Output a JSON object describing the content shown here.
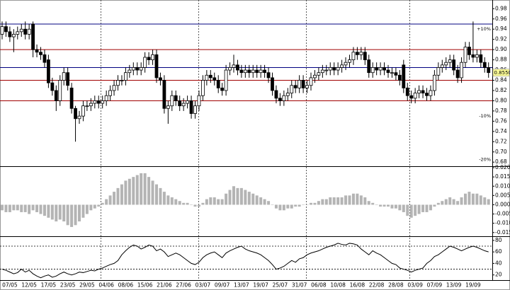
{
  "chart_data": [
    {
      "type": "candlestick",
      "open": [
        0.93,
        0.945,
        0.935,
        0.925,
        0.93,
        0.935,
        0.94,
        0.93,
        0.95,
        0.9,
        0.895,
        0.89,
        0.88,
        0.835,
        0.82,
        0.8,
        0.84,
        0.855,
        0.825,
        0.785,
        0.765,
        0.77,
        0.79,
        0.79,
        0.795,
        0.8,
        0.795,
        0.8,
        0.81,
        0.82,
        0.83,
        0.84,
        0.84,
        0.855,
        0.86,
        0.865,
        0.86,
        0.865,
        0.885,
        0.88,
        0.89,
        0.845,
        0.84,
        0.785,
        0.79,
        0.81,
        0.8,
        0.79,
        0.795,
        0.8,
        0.775,
        0.79,
        0.81,
        0.84,
        0.85,
        0.845,
        0.84,
        0.825,
        0.82,
        0.86,
        0.865,
        0.87,
        0.86,
        0.855,
        0.86,
        0.855,
        0.86,
        0.855,
        0.86,
        0.855,
        0.845,
        0.82,
        0.805,
        0.8,
        0.81,
        0.815,
        0.83,
        0.825,
        0.84,
        0.825,
        0.83,
        0.845,
        0.85,
        0.855,
        0.86,
        0.86,
        0.865,
        0.86,
        0.865,
        0.87,
        0.875,
        0.88,
        0.895,
        0.89,
        0.895,
        0.88,
        0.855,
        0.865,
        0.86,
        0.865,
        0.86,
        0.855,
        0.855,
        0.85,
        0.87,
        0.825,
        0.81,
        0.805,
        0.815,
        0.82,
        0.815,
        0.81,
        0.82,
        0.85,
        0.865,
        0.87,
        0.875,
        0.88,
        0.86,
        0.845,
        0.875,
        0.905,
        0.89,
        0.885,
        0.89,
        0.875,
        0.865
      ],
      "high": [
        0.955,
        0.955,
        0.945,
        0.94,
        0.945,
        0.95,
        0.955,
        0.95,
        0.955,
        0.91,
        0.905,
        0.9,
        0.89,
        0.845,
        0.83,
        0.85,
        0.865,
        0.865,
        0.835,
        0.79,
        0.78,
        0.8,
        0.8,
        0.805,
        0.81,
        0.81,
        0.81,
        0.82,
        0.83,
        0.84,
        0.85,
        0.85,
        0.865,
        0.87,
        0.875,
        0.875,
        0.875,
        0.895,
        0.895,
        0.9,
        0.9,
        0.855,
        0.85,
        0.8,
        0.82,
        0.82,
        0.81,
        0.805,
        0.81,
        0.81,
        0.8,
        0.82,
        0.85,
        0.86,
        0.86,
        0.855,
        0.85,
        0.835,
        0.87,
        0.875,
        0.89,
        0.88,
        0.87,
        0.87,
        0.87,
        0.87,
        0.87,
        0.87,
        0.87,
        0.865,
        0.855,
        0.83,
        0.815,
        0.82,
        0.825,
        0.84,
        0.84,
        0.85,
        0.85,
        0.84,
        0.855,
        0.86,
        0.865,
        0.87,
        0.87,
        0.875,
        0.875,
        0.875,
        0.88,
        0.885,
        0.89,
        0.905,
        0.905,
        0.905,
        0.905,
        0.89,
        0.875,
        0.875,
        0.875,
        0.875,
        0.87,
        0.865,
        0.865,
        0.86,
        0.88,
        0.835,
        0.82,
        0.825,
        0.83,
        0.83,
        0.825,
        0.83,
        0.86,
        0.875,
        0.88,
        0.885,
        0.89,
        0.89,
        0.87,
        0.885,
        0.915,
        0.915,
        0.955,
        0.9,
        0.9,
        0.885,
        0.875
      ],
      "low": [
        0.92,
        0.925,
        0.915,
        0.895,
        0.92,
        0.925,
        0.92,
        0.92,
        0.885,
        0.885,
        0.88,
        0.865,
        0.825,
        0.81,
        0.78,
        0.79,
        0.83,
        0.82,
        0.775,
        0.72,
        0.755,
        0.76,
        0.78,
        0.78,
        0.785,
        0.785,
        0.785,
        0.79,
        0.8,
        0.81,
        0.82,
        0.83,
        0.83,
        0.845,
        0.85,
        0.85,
        0.85,
        0.855,
        0.87,
        0.87,
        0.835,
        0.83,
        0.775,
        0.755,
        0.78,
        0.79,
        0.78,
        0.78,
        0.785,
        0.765,
        0.765,
        0.78,
        0.8,
        0.83,
        0.835,
        0.83,
        0.815,
        0.81,
        0.81,
        0.85,
        0.855,
        0.85,
        0.845,
        0.845,
        0.845,
        0.845,
        0.845,
        0.845,
        0.845,
        0.835,
        0.81,
        0.795,
        0.79,
        0.79,
        0.8,
        0.805,
        0.815,
        0.815,
        0.815,
        0.815,
        0.82,
        0.835,
        0.84,
        0.845,
        0.85,
        0.85,
        0.85,
        0.85,
        0.855,
        0.86,
        0.865,
        0.87,
        0.88,
        0.88,
        0.87,
        0.845,
        0.845,
        0.85,
        0.85,
        0.85,
        0.845,
        0.845,
        0.84,
        0.83,
        0.815,
        0.8,
        0.795,
        0.795,
        0.805,
        0.805,
        0.8,
        0.8,
        0.81,
        0.84,
        0.855,
        0.86,
        0.865,
        0.85,
        0.835,
        0.835,
        0.865,
        0.88,
        0.875,
        0.875,
        0.865,
        0.855,
        0.845
      ],
      "close": [
        0.945,
        0.935,
        0.925,
        0.93,
        0.935,
        0.94,
        0.93,
        0.94,
        0.9,
        0.895,
        0.89,
        0.875,
        0.835,
        0.82,
        0.8,
        0.84,
        0.855,
        0.83,
        0.785,
        0.765,
        0.77,
        0.79,
        0.79,
        0.795,
        0.8,
        0.795,
        0.8,
        0.81,
        0.82,
        0.83,
        0.84,
        0.84,
        0.855,
        0.86,
        0.865,
        0.86,
        0.865,
        0.885,
        0.88,
        0.89,
        0.845,
        0.84,
        0.785,
        0.79,
        0.81,
        0.8,
        0.79,
        0.795,
        0.8,
        0.775,
        0.79,
        0.81,
        0.84,
        0.85,
        0.845,
        0.84,
        0.825,
        0.82,
        0.86,
        0.865,
        0.87,
        0.86,
        0.855,
        0.86,
        0.855,
        0.86,
        0.855,
        0.86,
        0.855,
        0.845,
        0.82,
        0.805,
        0.8,
        0.81,
        0.815,
        0.83,
        0.825,
        0.84,
        0.825,
        0.83,
        0.845,
        0.85,
        0.855,
        0.86,
        0.86,
        0.865,
        0.86,
        0.865,
        0.87,
        0.875,
        0.88,
        0.895,
        0.89,
        0.895,
        0.88,
        0.855,
        0.865,
        0.86,
        0.865,
        0.86,
        0.855,
        0.855,
        0.85,
        0.84,
        0.825,
        0.81,
        0.805,
        0.815,
        0.82,
        0.815,
        0.81,
        0.82,
        0.85,
        0.865,
        0.87,
        0.875,
        0.88,
        0.86,
        0.845,
        0.875,
        0.905,
        0.89,
        0.885,
        0.89,
        0.875,
        0.865,
        0.855
      ],
      "up_color": "#ffffff",
      "down_color": "#000000",
      "ylim": [
        0.672,
        0.997
      ],
      "yticks": [
        {
          "value": 0.68,
          "label": "0.68"
        },
        {
          "value": 0.7,
          "label": "0.70"
        },
        {
          "value": 0.72,
          "label": "0.72"
        },
        {
          "value": 0.74,
          "label": "0.74"
        },
        {
          "value": 0.76,
          "label": "0.76"
        },
        {
          "value": 0.78,
          "label": "0.78"
        },
        {
          "value": 0.8,
          "label": "0.80"
        },
        {
          "value": 0.82,
          "label": "0.82"
        },
        {
          "value": 0.84,
          "label": "0.84"
        },
        {
          "value": 0.86,
          "label": "0.86"
        },
        {
          "value": 0.88,
          "label": "0.88"
        },
        {
          "value": 0.9,
          "label": "0.90"
        },
        {
          "value": 0.92,
          "label": "0.92"
        },
        {
          "value": 0.94,
          "label": "0.94"
        },
        {
          "value": 0.96,
          "label": "0.96"
        },
        {
          "value": 0.98,
          "label": "0.98"
        }
      ],
      "hlines": [
        {
          "value": 0.95,
          "color": "#000080"
        },
        {
          "value": 0.9,
          "color": "#a00000"
        },
        {
          "value": 0.865,
          "color": "#000080"
        },
        {
          "value": 0.84,
          "color": "#a00000"
        },
        {
          "value": 0.8,
          "color": "#a00000"
        }
      ],
      "annotations": [
        {
          "text": "+10%",
          "y": 0.94,
          "color": "#2e8b57"
        },
        {
          "text": "-10%",
          "y": 0.77,
          "color": "#a00000"
        },
        {
          "text": "-20%",
          "y": 0.685,
          "color": "#a00000"
        }
      ],
      "last_price_label": "0.8550"
    },
    {
      "type": "bar",
      "values": [
        -0.003,
        -0.004,
        -0.004,
        -0.003,
        -0.003,
        -0.004,
        -0.004,
        -0.005,
        -0.003,
        -0.004,
        -0.005,
        -0.006,
        -0.007,
        -0.008,
        -0.009,
        -0.008,
        -0.009,
        -0.011,
        -0.012,
        -0.011,
        -0.009,
        -0.007,
        -0.005,
        -0.003,
        -0.002,
        -0.001,
        0.001,
        0.003,
        0.005,
        0.007,
        0.009,
        0.011,
        0.013,
        0.014,
        0.015,
        0.016,
        0.017,
        0.017,
        0.015,
        0.013,
        0.011,
        0.009,
        0.007,
        0.005,
        0.004,
        0.003,
        0.002,
        0.001,
        0.001,
        0,
        -0.001,
        -0.001,
        0.001,
        0.003,
        0.004,
        0.004,
        0.003,
        0.003,
        0.006,
        0.008,
        0.01,
        0.009,
        0.009,
        0.008,
        0.007,
        0.006,
        0.005,
        0.004,
        0.003,
        0.002,
        0,
        -0.002,
        -0.003,
        -0.003,
        -0.002,
        -0.002,
        -0.001,
        -0.001,
        0,
        0,
        0.001,
        0.001,
        0.002,
        0.003,
        0.003,
        0.004,
        0.004,
        0.004,
        0.004,
        0.005,
        0.005,
        0.006,
        0.006,
        0.005,
        0.004,
        0.002,
        0.001,
        0,
        -0.001,
        -0.001,
        -0.001,
        -0.002,
        -0.002,
        -0.003,
        -0.004,
        -0.006,
        -0.007,
        -0.006,
        -0.005,
        -0.004,
        -0.004,
        -0.003,
        -0.001,
        0.001,
        0.002,
        0.003,
        0.004,
        0.003,
        0.002,
        0.004,
        0.006,
        0.007,
        0.006,
        0.006,
        0.005,
        0.004,
        0.003
      ],
      "color": "#b4b4b4",
      "ylim": [
        -0.017,
        0.0204
      ],
      "yticks": [
        {
          "value": -0.015,
          "label": "-0.015"
        },
        {
          "value": -0.01,
          "label": "-0.010"
        },
        {
          "value": -0.005,
          "label": "-0.005"
        },
        {
          "value": 0,
          "label": "0.000"
        },
        {
          "value": 0.005,
          "label": "0.005"
        },
        {
          "value": 0.01,
          "label": "0.010"
        },
        {
          "value": 0.015,
          "label": "0.015"
        },
        {
          "value": 0.02,
          "label": "0.020"
        }
      ]
    },
    {
      "type": "line",
      "categories": [
        null,
        null,
        "07/05",
        null,
        null,
        null,
        null,
        "12/05",
        null,
        null,
        null,
        null,
        "17/05",
        null,
        null,
        null,
        null,
        "23/05",
        null,
        null,
        null,
        null,
        "29/05",
        null,
        null,
        null,
        null,
        "04/06",
        null,
        null,
        null,
        null,
        "08/06",
        null,
        null,
        null,
        null,
        "15/06",
        null,
        null,
        null,
        null,
        "21/06",
        null,
        null,
        null,
        null,
        "27/06",
        null,
        null,
        null,
        null,
        "03/07",
        null,
        null,
        null,
        null,
        "09/07",
        null,
        null,
        null,
        null,
        "13/07",
        null,
        null,
        null,
        null,
        "19/07",
        null,
        null,
        null,
        null,
        "25/07",
        null,
        null,
        null,
        null,
        "31/07",
        null,
        null,
        null,
        null,
        "06/08",
        null,
        null,
        null,
        null,
        "10/08",
        null,
        null,
        null,
        null,
        "16/08",
        null,
        null,
        null,
        null,
        "22/08",
        null,
        null,
        null,
        null,
        "28/08",
        null,
        null,
        null,
        null,
        "03/09",
        null,
        null,
        null,
        null,
        "07/09",
        null,
        null,
        null,
        null,
        "13/09",
        null,
        null,
        null,
        null,
        "19/09",
        null,
        null,
        null,
        null
      ],
      "values": [
        30,
        28,
        25,
        22,
        24,
        30,
        25,
        28,
        22,
        18,
        15,
        18,
        20,
        16,
        18,
        22,
        25,
        22,
        20,
        22,
        25,
        24,
        26,
        28,
        27,
        30,
        32,
        35,
        38,
        40,
        45,
        55,
        62,
        68,
        72,
        70,
        65,
        68,
        72,
        70,
        62,
        65,
        60,
        52,
        55,
        58,
        55,
        50,
        45,
        40,
        38,
        42,
        50,
        55,
        58,
        60,
        55,
        50,
        58,
        62,
        65,
        68,
        70,
        65,
        62,
        60,
        58,
        55,
        50,
        45,
        38,
        30,
        32,
        35,
        40,
        45,
        42,
        48,
        50,
        55,
        58,
        60,
        62,
        65,
        68,
        70,
        72,
        75,
        73,
        72,
        75,
        74,
        72,
        65,
        60,
        55,
        62,
        58,
        55,
        50,
        45,
        40,
        38,
        32,
        30,
        28,
        25,
        28,
        30,
        32,
        40,
        45,
        52,
        55,
        60,
        65,
        70,
        68,
        65,
        62,
        65,
        68,
        70,
        68,
        65,
        62,
        60
      ],
      "color": "#000000",
      "ylim": [
        11,
        86
      ],
      "yticks": [
        20,
        40,
        60,
        80
      ],
      "hlines": [
        70,
        30
      ]
    }
  ]
}
